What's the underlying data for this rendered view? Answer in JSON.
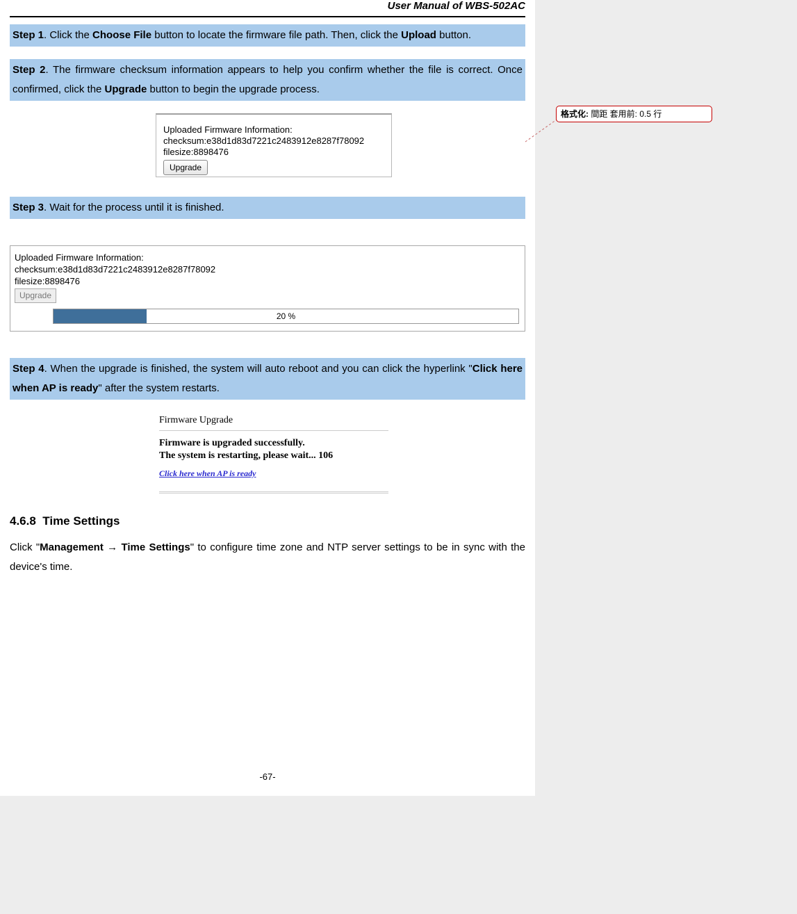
{
  "header": {
    "title": "User  Manual  of  WBS-502AC"
  },
  "steps": {
    "s1": {
      "label": "Step 1",
      "pre": ". Click the ",
      "b1": "Choose File",
      "mid": " button to locate the firmware file path. Then, click the ",
      "b2": "Upload",
      "post": " button."
    },
    "s2": {
      "label": "Step 2",
      "pre": ".  The  firmware  checksum  information  appears  to  help  you  confirm  whether  the  file  is  correct.  Once confirmed, click the ",
      "b1": "Upgrade",
      "post": " button to begin the upgrade process."
    },
    "s3": {
      "label": "Step 3",
      "post": ". Wait for the process until it is finished."
    },
    "s4": {
      "label": "Step 4",
      "pre": ". When the upgrade is finished, the system will auto reboot and you can click the hyperlink \"",
      "b1": "Click here when AP is ready",
      "post": "\" after the system restarts."
    }
  },
  "fig1": {
    "line1": "Uploaded Firmware Information:",
    "line2": "checksum:e38d1d83d7221c2483912e8287f78092",
    "line3": "filesize:8898476",
    "button": "Upgrade"
  },
  "fig2": {
    "line1": "Uploaded Firmware Information:",
    "line2": "checksum:e38d1d83d7221c2483912e8287f78092",
    "line3": "filesize:8898476",
    "button": "Upgrade",
    "progress_pct": 20,
    "progress_label": "20 %",
    "bar_color": "#3f6f9a"
  },
  "fig3": {
    "title": "Firmware Upgrade",
    "msg1": "Firmware is upgraded successfully.",
    "msg2": "The system is restarting, please wait... 106",
    "link": "Click here when AP is ready",
    "link_color": "#2b2bcf"
  },
  "section": {
    "num": "4.6.8",
    "title": "Time Settings",
    "pre": "Click \"",
    "path": "Management → Time Settings",
    "post": "\" to configure time zone and NTP server settings to be in sync with the device's time."
  },
  "footer": {
    "page": "-67-"
  },
  "comment": {
    "label": "格式化:",
    "text": " 間距 套用前:  0.5 行"
  },
  "colors": {
    "step_bg": "#a9cbeb",
    "comment_border": "#c40000",
    "leader": "#c86a6a",
    "body_bg": "#ededed",
    "page_bg": "#ffffff"
  }
}
